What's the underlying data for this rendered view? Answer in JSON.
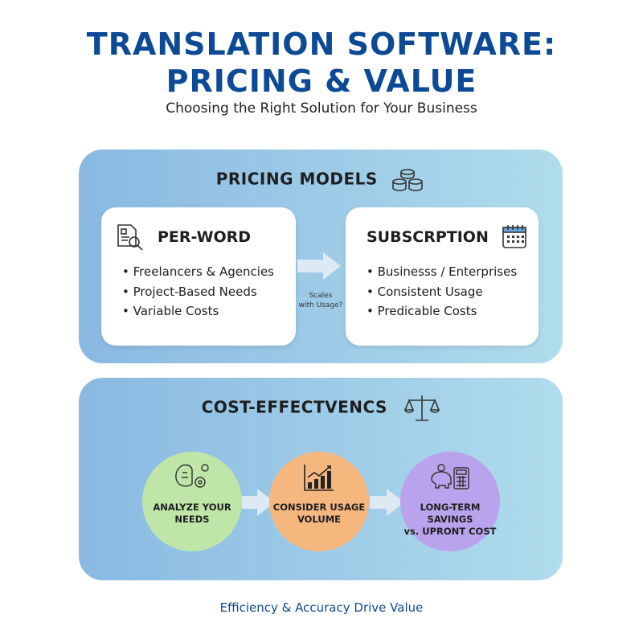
{
  "header": {
    "title_line1": "TRANSLATION SOFTWARE:",
    "title_line2": "PRICING & VALUE",
    "subtitle": "Choosing the Right Solution for Your Business"
  },
  "pricing_models": {
    "title": "PRICING MODELS",
    "icon": "coins-stack-icon",
    "per_word": {
      "title": "PER-WORD",
      "icon": "document-search-icon",
      "items": [
        "Freelancers & Agencies",
        "Project-Based Needs",
        "Variable Costs"
      ]
    },
    "subscription": {
      "title": "SUBSCRPTION",
      "icon": "calendar-icon",
      "items": [
        "Businesss / Enterprises",
        "Consistent Usage",
        "Predicable Costs"
      ]
    },
    "arrow_note_line1": "Scales",
    "arrow_note_line2": "with Usage?"
  },
  "cost_effectiveness": {
    "title": "COST-EFFECTVENCS",
    "icon": "balance-scale-icon",
    "steps": [
      {
        "line1": "ANALYZE YOUR",
        "line2": "NEEDS",
        "icon": "brain-gears-icon",
        "color": "#bfe6a8"
      },
      {
        "line1": "CONSIDER USAGE",
        "line2": "VOLUME",
        "icon": "bar-chart-growth-icon",
        "color": "#f6b77f"
      },
      {
        "line1": "LONG-TERM SAVINGS",
        "line2": "vs. UPRONT COST",
        "icon": "piggy-bank-calculator-icon",
        "color": "#b9a3ec"
      }
    ]
  },
  "footer": "Efficiency & Accuracy Drive Value"
}
